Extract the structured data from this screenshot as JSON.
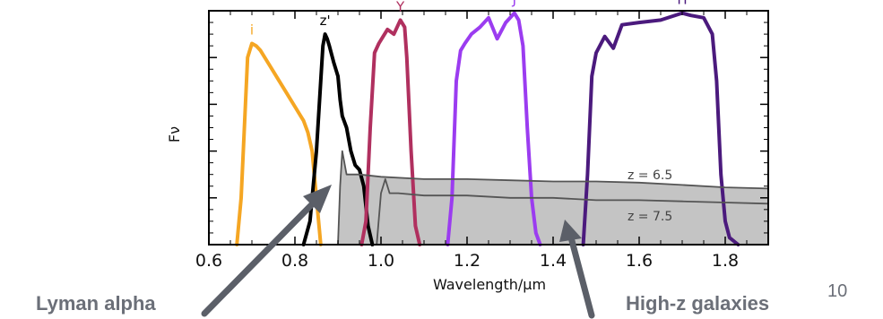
{
  "chart_data": {
    "type": "line",
    "xlabel": "Wavelength/μm",
    "ylabel": "Fν",
    "xlim": [
      0.6,
      1.9
    ],
    "ylim": [
      0,
      1.0
    ],
    "xticks": [
      "0.6",
      "0.8",
      "1.0",
      "1.2",
      "1.4",
      "1.6",
      "1.8"
    ],
    "grid": false,
    "series": [
      {
        "name": "i",
        "color": "#f5a623",
        "x": [
          0.665,
          0.675,
          0.685,
          0.69,
          0.7,
          0.71,
          0.72,
          0.74,
          0.76,
          0.78,
          0.8,
          0.82,
          0.83,
          0.84,
          0.85,
          0.86
        ],
        "y": [
          0.0,
          0.2,
          0.6,
          0.8,
          0.86,
          0.85,
          0.83,
          0.77,
          0.71,
          0.65,
          0.59,
          0.53,
          0.48,
          0.4,
          0.2,
          0.0
        ]
      },
      {
        "name": "z'",
        "color": "#000000",
        "x": [
          0.82,
          0.835,
          0.85,
          0.86,
          0.865,
          0.87,
          0.875,
          0.88,
          0.89,
          0.9,
          0.905,
          0.91,
          0.92,
          0.93,
          0.94,
          0.95,
          0.96,
          0.97,
          0.98
        ],
        "y": [
          0.0,
          0.1,
          0.4,
          0.7,
          0.85,
          0.9,
          0.88,
          0.85,
          0.78,
          0.72,
          0.62,
          0.55,
          0.5,
          0.4,
          0.34,
          0.32,
          0.25,
          0.08,
          0.0
        ]
      },
      {
        "name": "Y",
        "color": "#b0305f",
        "x": [
          0.955,
          0.965,
          0.975,
          0.985,
          0.995,
          1.005,
          1.015,
          1.03,
          1.045,
          1.055,
          1.06,
          1.07,
          1.08,
          1.09
        ],
        "y": [
          0.0,
          0.1,
          0.5,
          0.82,
          0.86,
          0.89,
          0.92,
          0.9,
          0.96,
          0.93,
          0.8,
          0.4,
          0.08,
          0.0
        ]
      },
      {
        "name": "J",
        "color": "#9b3cf0",
        "x": [
          1.155,
          1.165,
          1.175,
          1.185,
          1.195,
          1.21,
          1.23,
          1.25,
          1.27,
          1.29,
          1.31,
          1.32,
          1.33,
          1.34,
          1.35,
          1.36,
          1.37
        ],
        "y": [
          0.0,
          0.2,
          0.7,
          0.83,
          0.86,
          0.9,
          0.93,
          0.97,
          0.88,
          0.95,
          0.99,
          0.96,
          0.85,
          0.5,
          0.2,
          0.05,
          0.0
        ]
      },
      {
        "name": "H",
        "color": "#4b1a7d",
        "x": [
          1.47,
          1.48,
          1.49,
          1.5,
          1.52,
          1.54,
          1.56,
          1.6,
          1.65,
          1.7,
          1.72,
          1.75,
          1.77,
          1.78,
          1.79,
          1.8,
          1.81,
          1.83
        ],
        "y": [
          0.0,
          0.3,
          0.72,
          0.82,
          0.89,
          0.84,
          0.94,
          0.95,
          0.96,
          0.99,
          0.98,
          0.97,
          0.9,
          0.7,
          0.3,
          0.1,
          0.03,
          0.0
        ]
      },
      {
        "name": "z = 6.5",
        "color": "#555555",
        "x": [
          0.9,
          0.905,
          0.91,
          0.92,
          0.95,
          1.0,
          1.1,
          1.2,
          1.3,
          1.4,
          1.5,
          1.6,
          1.7,
          1.8,
          1.9
        ],
        "y": [
          0.0,
          0.25,
          0.4,
          0.3,
          0.3,
          0.29,
          0.28,
          0.28,
          0.275,
          0.27,
          0.27,
          0.265,
          0.255,
          0.245,
          0.24
        ]
      },
      {
        "name": "z = 7.5",
        "color": "#555555",
        "x": [
          0.99,
          1.0,
          1.01,
          1.02,
          1.04,
          1.1,
          1.2,
          1.3,
          1.4,
          1.5,
          1.6,
          1.7,
          1.8,
          1.9
        ],
        "y": [
          0.0,
          0.22,
          0.28,
          0.22,
          0.22,
          0.21,
          0.21,
          0.2,
          0.2,
          0.19,
          0.19,
          0.185,
          0.18,
          0.175
        ]
      }
    ],
    "model_labels": [
      "z = 6.5",
      "z = 7.5"
    ],
    "annotations": [
      "Lyman alpha",
      "High-z galaxies"
    ]
  },
  "slide": {
    "page_number": "10"
  }
}
